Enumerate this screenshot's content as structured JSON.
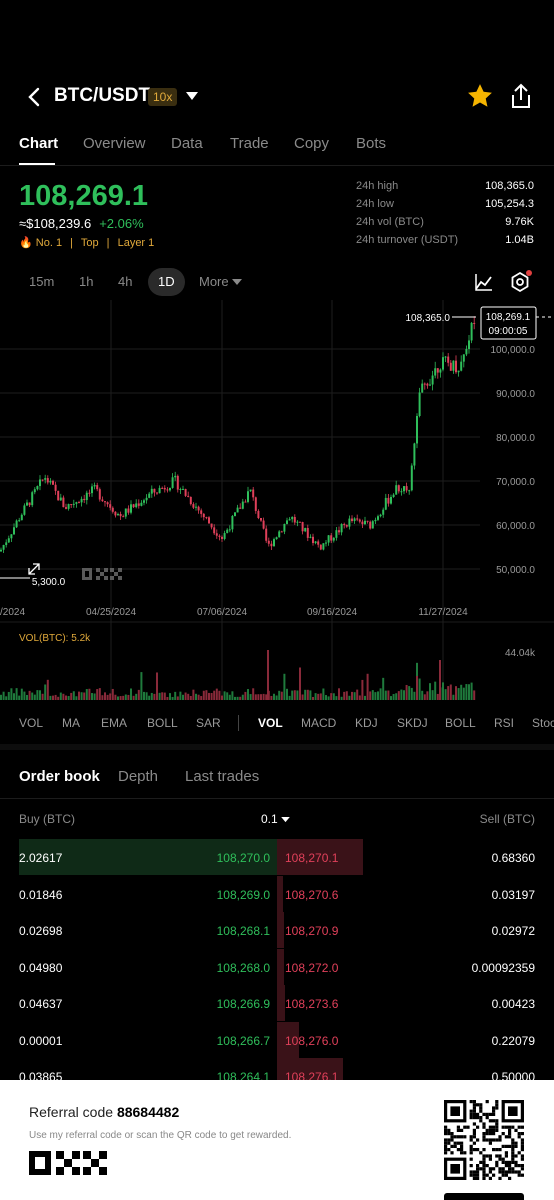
{
  "header": {
    "pair": "BTC/USDT",
    "leverage": "10x"
  },
  "tabs": [
    "Chart",
    "Overview",
    "Data",
    "Trade",
    "Copy",
    "Bots"
  ],
  "ticker": {
    "last_price": "108,269.1",
    "fiat": "≈$108,239.6",
    "change": "+2.06%",
    "rank": "No. 1",
    "tag1": "Top",
    "tag2": "Layer 1"
  },
  "stats": [
    {
      "label": "24h high",
      "value": "108,365.0"
    },
    {
      "label": "24h low",
      "value": "105,254.3"
    },
    {
      "label": "24h vol (BTC)",
      "value": "9.76K"
    },
    {
      "label": "24h turnover (USDT)",
      "value": "1.04B"
    }
  ],
  "timeframes": [
    "15m",
    "1h",
    "4h",
    "1D",
    "More"
  ],
  "selected_timeframe": "1D",
  "chart_data": {
    "type": "candlestick",
    "x_ticks": [
      "/2024",
      "04/25/2024",
      "07/06/2024",
      "09/16/2024",
      "11/27/2024"
    ],
    "y_ticks": [
      "100,000.0",
      "90,000.0",
      "80,000.0",
      "70,000.0",
      "60,000.0",
      "50,000.0"
    ],
    "high_label": "108,365.0",
    "low_label": " 5,300.0",
    "current_price": "108,269.1",
    "countdown": "09:00:05",
    "volume_label": "VOL(BTC): 5.2k",
    "volume_max": "44.04k"
  },
  "indicators_main": [
    "VOL",
    "MA",
    "EMA",
    "BOLL",
    "SAR"
  ],
  "indicators_sub": [
    "VOL",
    "MACD",
    "KDJ",
    "SKDJ",
    "BOLL",
    "RSI",
    "Stoc"
  ],
  "orderbook": {
    "tabs": [
      "Order book",
      "Depth",
      "Last trades"
    ],
    "buy_header": "Buy (BTC)",
    "step": "0.1",
    "sell_header": "Sell (BTC)",
    "rows": [
      {
        "buy_qty": "2.02617",
        "bid": "108,270.0",
        "ask": "108,270.1",
        "sell_qty": "0.68360",
        "buy_depth": 1.0,
        "sell_depth": 0.78
      },
      {
        "buy_qty": "0.01846",
        "bid": "108,269.0",
        "ask": "108,270.6",
        "sell_qty": "0.03197",
        "buy_depth": 0.0,
        "sell_depth": 0.05
      },
      {
        "buy_qty": "0.02698",
        "bid": "108,268.1",
        "ask": "108,270.9",
        "sell_qty": "0.02972",
        "buy_depth": 0.0,
        "sell_depth": 0.06
      },
      {
        "buy_qty": "0.04980",
        "bid": "108,268.0",
        "ask": "108,272.0",
        "sell_qty": "0.00092359",
        "buy_depth": 0.0,
        "sell_depth": 0.06
      },
      {
        "buy_qty": "0.04637",
        "bid": "108,266.9",
        "ask": "108,273.6",
        "sell_qty": "0.00423",
        "buy_depth": 0.0,
        "sell_depth": 0.07
      },
      {
        "buy_qty": "0.00001",
        "bid": "108,266.7",
        "ask": "108,276.0",
        "sell_qty": "0.22079",
        "buy_depth": 0.0,
        "sell_depth": 0.2
      },
      {
        "buy_qty": "0.03865",
        "bid": "108,264.1",
        "ask": "108,276.1",
        "sell_qty": "0.50000",
        "buy_depth": 0.0,
        "sell_depth": 0.6
      }
    ]
  },
  "footer": {
    "referral_label": "Referral code",
    "referral_code": "88684482",
    "note": "Use my referral code or scan the QR code to get rewarded."
  }
}
